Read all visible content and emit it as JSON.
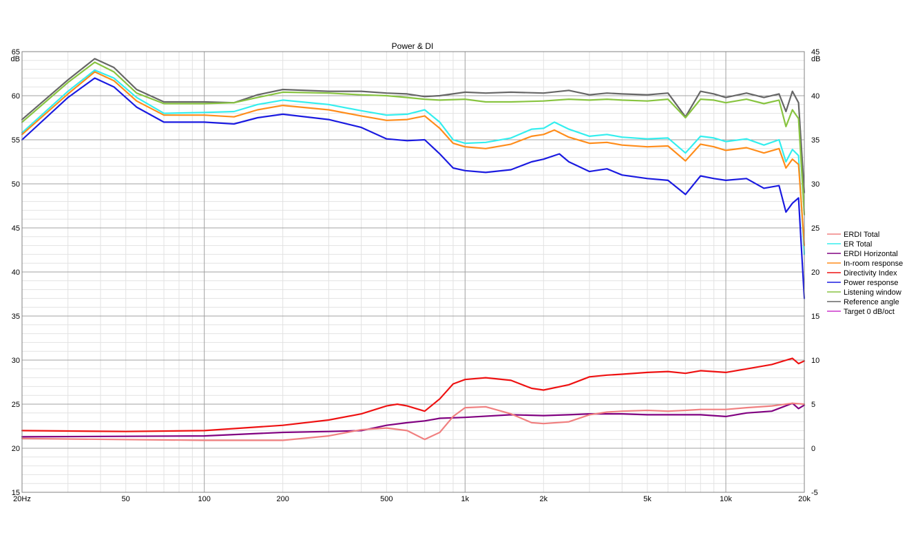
{
  "chart_data": {
    "type": "line",
    "title": "Power & DI",
    "x_scale": "log",
    "xlim": [
      20,
      20000
    ],
    "ylim_left": [
      15,
      65
    ],
    "ylim_right": [
      -5,
      45
    ],
    "left_unit": "dB",
    "right_unit": "dB",
    "grid": true,
    "legend_position": "right",
    "x_ticks": [
      {
        "value": 20,
        "label": "20Hz"
      },
      {
        "value": 50,
        "label": "50"
      },
      {
        "value": 100,
        "label": "100"
      },
      {
        "value": 200,
        "label": "200"
      },
      {
        "value": 500,
        "label": "500"
      },
      {
        "value": 1000,
        "label": "1k"
      },
      {
        "value": 2000,
        "label": "2k"
      },
      {
        "value": 5000,
        "label": "5k"
      },
      {
        "value": 10000,
        "label": "10k"
      },
      {
        "value": 20000,
        "label": "20k"
      }
    ],
    "y_ticks_left": [
      "15",
      "20",
      "25",
      "30",
      "35",
      "40",
      "45",
      "50",
      "55",
      "60",
      "65"
    ],
    "y_ticks_right": [
      "-5",
      "0",
      "5",
      "10",
      "15",
      "20",
      "25",
      "30",
      "35",
      "40",
      "45"
    ],
    "series": [
      {
        "name": "ERDI Total",
        "color": "#f08080",
        "axis": "right",
        "points": [
          [
            20,
            1.1
          ],
          [
            100,
            0.9
          ],
          [
            200,
            0.9
          ],
          [
            300,
            1.4
          ],
          [
            400,
            2.1
          ],
          [
            500,
            2.3
          ],
          [
            600,
            2.0
          ],
          [
            700,
            1.0
          ],
          [
            800,
            1.8
          ],
          [
            900,
            3.6
          ],
          [
            1000,
            4.6
          ],
          [
            1200,
            4.7
          ],
          [
            1500,
            3.9
          ],
          [
            1800,
            2.9
          ],
          [
            2000,
            2.8
          ],
          [
            2500,
            3.0
          ],
          [
            3000,
            3.8
          ],
          [
            3500,
            4.1
          ],
          [
            4000,
            4.2
          ],
          [
            5000,
            4.3
          ],
          [
            6000,
            4.2
          ],
          [
            7000,
            4.3
          ],
          [
            8000,
            4.4
          ],
          [
            10000,
            4.4
          ],
          [
            12000,
            4.6
          ],
          [
            15000,
            4.8
          ],
          [
            18000,
            5.1
          ],
          [
            20000,
            5.0
          ]
        ]
      },
      {
        "name": "ER Total",
        "color": "#33eeee",
        "axis": "left",
        "points": [
          [
            20,
            55.8
          ],
          [
            30,
            60.5
          ],
          [
            38,
            62.9
          ],
          [
            45,
            62.0
          ],
          [
            55,
            59.8
          ],
          [
            70,
            58.0
          ],
          [
            100,
            58.1
          ],
          [
            130,
            58.2
          ],
          [
            160,
            59.0
          ],
          [
            200,
            59.5
          ],
          [
            300,
            59.0
          ],
          [
            400,
            58.3
          ],
          [
            500,
            57.8
          ],
          [
            600,
            57.9
          ],
          [
            700,
            58.4
          ],
          [
            800,
            57.0
          ],
          [
            900,
            55.0
          ],
          [
            1000,
            54.6
          ],
          [
            1200,
            54.7
          ],
          [
            1500,
            55.2
          ],
          [
            1800,
            56.2
          ],
          [
            2000,
            56.3
          ],
          [
            2200,
            57.0
          ],
          [
            2500,
            56.2
          ],
          [
            3000,
            55.4
          ],
          [
            3500,
            55.6
          ],
          [
            4000,
            55.3
          ],
          [
            5000,
            55.1
          ],
          [
            6000,
            55.2
          ],
          [
            7000,
            53.5
          ],
          [
            8000,
            55.4
          ],
          [
            9000,
            55.2
          ],
          [
            10000,
            54.8
          ],
          [
            12000,
            55.1
          ],
          [
            14000,
            54.4
          ],
          [
            16000,
            55.0
          ],
          [
            17000,
            52.5
          ],
          [
            18000,
            53.9
          ],
          [
            19000,
            53.2
          ],
          [
            20000,
            42.0
          ]
        ]
      },
      {
        "name": "ERDI Horizontal",
        "color": "#800080",
        "axis": "right",
        "points": [
          [
            20,
            1.3
          ],
          [
            100,
            1.4
          ],
          [
            200,
            1.8
          ],
          [
            300,
            1.9
          ],
          [
            400,
            2.0
          ],
          [
            500,
            2.6
          ],
          [
            600,
            2.9
          ],
          [
            700,
            3.1
          ],
          [
            800,
            3.4
          ],
          [
            1000,
            3.5
          ],
          [
            1500,
            3.8
          ],
          [
            2000,
            3.7
          ],
          [
            2500,
            3.8
          ],
          [
            3000,
            3.9
          ],
          [
            4000,
            3.9
          ],
          [
            5000,
            3.8
          ],
          [
            6000,
            3.8
          ],
          [
            8000,
            3.8
          ],
          [
            10000,
            3.6
          ],
          [
            12000,
            4.0
          ],
          [
            15000,
            4.2
          ],
          [
            18000,
            5.1
          ],
          [
            19000,
            4.5
          ],
          [
            20000,
            4.9
          ]
        ]
      },
      {
        "name": "In-room response",
        "color": "#ff8c1a",
        "axis": "left",
        "points": [
          [
            20,
            55.6
          ],
          [
            30,
            60.2
          ],
          [
            38,
            62.7
          ],
          [
            45,
            61.7
          ],
          [
            55,
            59.4
          ],
          [
            70,
            57.8
          ],
          [
            100,
            57.8
          ],
          [
            130,
            57.6
          ],
          [
            160,
            58.4
          ],
          [
            200,
            58.9
          ],
          [
            300,
            58.4
          ],
          [
            400,
            57.7
          ],
          [
            500,
            57.2
          ],
          [
            600,
            57.3
          ],
          [
            700,
            57.7
          ],
          [
            800,
            56.3
          ],
          [
            900,
            54.6
          ],
          [
            1000,
            54.2
          ],
          [
            1200,
            54.0
          ],
          [
            1500,
            54.5
          ],
          [
            1800,
            55.4
          ],
          [
            2000,
            55.6
          ],
          [
            2200,
            56.1
          ],
          [
            2500,
            55.3
          ],
          [
            3000,
            54.6
          ],
          [
            3500,
            54.7
          ],
          [
            4000,
            54.4
          ],
          [
            5000,
            54.2
          ],
          [
            6000,
            54.3
          ],
          [
            7000,
            52.6
          ],
          [
            8000,
            54.5
          ],
          [
            9000,
            54.2
          ],
          [
            10000,
            53.8
          ],
          [
            12000,
            54.1
          ],
          [
            14000,
            53.5
          ],
          [
            16000,
            54.0
          ],
          [
            17000,
            51.8
          ],
          [
            18000,
            52.8
          ],
          [
            19000,
            52.2
          ],
          [
            20000,
            43.0
          ]
        ]
      },
      {
        "name": "Directivity Index",
        "color": "#ee1111",
        "axis": "right",
        "points": [
          [
            20,
            2.0
          ],
          [
            50,
            1.9
          ],
          [
            100,
            2.0
          ],
          [
            200,
            2.6
          ],
          [
            300,
            3.2
          ],
          [
            400,
            3.9
          ],
          [
            500,
            4.8
          ],
          [
            550,
            5.0
          ],
          [
            600,
            4.8
          ],
          [
            700,
            4.2
          ],
          [
            800,
            5.6
          ],
          [
            900,
            7.3
          ],
          [
            1000,
            7.8
          ],
          [
            1200,
            8.0
          ],
          [
            1500,
            7.7
          ],
          [
            1800,
            6.8
          ],
          [
            2000,
            6.6
          ],
          [
            2500,
            7.2
          ],
          [
            3000,
            8.1
          ],
          [
            3500,
            8.3
          ],
          [
            4000,
            8.4
          ],
          [
            5000,
            8.6
          ],
          [
            6000,
            8.7
          ],
          [
            7000,
            8.5
          ],
          [
            8000,
            8.8
          ],
          [
            10000,
            8.6
          ],
          [
            12000,
            9.0
          ],
          [
            15000,
            9.5
          ],
          [
            18000,
            10.2
          ],
          [
            19000,
            9.6
          ],
          [
            20000,
            9.9
          ]
        ]
      },
      {
        "name": "Power response",
        "color": "#1a1ae0",
        "axis": "left",
        "points": [
          [
            20,
            55.0
          ],
          [
            30,
            59.8
          ],
          [
            38,
            62.0
          ],
          [
            45,
            61.0
          ],
          [
            55,
            58.7
          ],
          [
            70,
            57.0
          ],
          [
            100,
            57.0
          ],
          [
            130,
            56.8
          ],
          [
            160,
            57.5
          ],
          [
            200,
            57.9
          ],
          [
            300,
            57.3
          ],
          [
            400,
            56.4
          ],
          [
            500,
            55.1
          ],
          [
            600,
            54.9
          ],
          [
            700,
            55.0
          ],
          [
            800,
            53.4
          ],
          [
            900,
            51.8
          ],
          [
            1000,
            51.5
          ],
          [
            1200,
            51.3
          ],
          [
            1500,
            51.6
          ],
          [
            1800,
            52.5
          ],
          [
            2000,
            52.8
          ],
          [
            2300,
            53.4
          ],
          [
            2500,
            52.5
          ],
          [
            3000,
            51.4
          ],
          [
            3500,
            51.7
          ],
          [
            4000,
            51.0
          ],
          [
            5000,
            50.6
          ],
          [
            6000,
            50.4
          ],
          [
            7000,
            48.8
          ],
          [
            8000,
            50.9
          ],
          [
            9000,
            50.6
          ],
          [
            10000,
            50.4
          ],
          [
            12000,
            50.6
          ],
          [
            14000,
            49.5
          ],
          [
            16000,
            49.8
          ],
          [
            17000,
            46.8
          ],
          [
            18000,
            47.8
          ],
          [
            19000,
            48.4
          ],
          [
            20000,
            37.0
          ]
        ]
      },
      {
        "name": "Listening window",
        "color": "#88c440",
        "axis": "left",
        "points": [
          [
            20,
            57.0
          ],
          [
            30,
            61.5
          ],
          [
            38,
            63.8
          ],
          [
            45,
            62.7
          ],
          [
            55,
            60.3
          ],
          [
            70,
            59.1
          ],
          [
            100,
            59.1
          ],
          [
            130,
            59.2
          ],
          [
            160,
            59.8
          ],
          [
            200,
            60.4
          ],
          [
            300,
            60.3
          ],
          [
            400,
            60.1
          ],
          [
            500,
            60.0
          ],
          [
            600,
            59.8
          ],
          [
            700,
            59.6
          ],
          [
            800,
            59.5
          ],
          [
            1000,
            59.6
          ],
          [
            1200,
            59.3
          ],
          [
            1500,
            59.3
          ],
          [
            2000,
            59.4
          ],
          [
            2500,
            59.6
          ],
          [
            3000,
            59.5
          ],
          [
            3500,
            59.6
          ],
          [
            4000,
            59.5
          ],
          [
            5000,
            59.4
          ],
          [
            6000,
            59.6
          ],
          [
            7000,
            57.5
          ],
          [
            8000,
            59.6
          ],
          [
            9000,
            59.5
          ],
          [
            10000,
            59.2
          ],
          [
            12000,
            59.6
          ],
          [
            14000,
            59.1
          ],
          [
            16000,
            59.5
          ],
          [
            17000,
            56.5
          ],
          [
            18000,
            58.4
          ],
          [
            19000,
            57.4
          ],
          [
            20000,
            46.5
          ]
        ]
      },
      {
        "name": "Reference angle",
        "color": "#666666",
        "axis": "left",
        "points": [
          [
            20,
            57.3
          ],
          [
            30,
            61.8
          ],
          [
            38,
            64.2
          ],
          [
            45,
            63.2
          ],
          [
            55,
            60.7
          ],
          [
            70,
            59.3
          ],
          [
            100,
            59.3
          ],
          [
            130,
            59.2
          ],
          [
            160,
            60.1
          ],
          [
            200,
            60.7
          ],
          [
            300,
            60.5
          ],
          [
            400,
            60.5
          ],
          [
            500,
            60.3
          ],
          [
            600,
            60.2
          ],
          [
            700,
            59.9
          ],
          [
            800,
            60.0
          ],
          [
            1000,
            60.4
          ],
          [
            1200,
            60.3
          ],
          [
            1500,
            60.4
          ],
          [
            2000,
            60.3
          ],
          [
            2500,
            60.6
          ],
          [
            3000,
            60.1
          ],
          [
            3500,
            60.3
          ],
          [
            4000,
            60.2
          ],
          [
            5000,
            60.1
          ],
          [
            6000,
            60.3
          ],
          [
            7000,
            57.6
          ],
          [
            8000,
            60.5
          ],
          [
            9000,
            60.2
          ],
          [
            10000,
            59.8
          ],
          [
            12000,
            60.3
          ],
          [
            14000,
            59.8
          ],
          [
            16000,
            60.2
          ],
          [
            17000,
            58.2
          ],
          [
            18000,
            60.5
          ],
          [
            19000,
            59.2
          ],
          [
            20000,
            49.0
          ]
        ]
      },
      {
        "name": "Target 0 dB/oct",
        "color": "#cc33cc",
        "axis": "left",
        "points": []
      }
    ]
  }
}
